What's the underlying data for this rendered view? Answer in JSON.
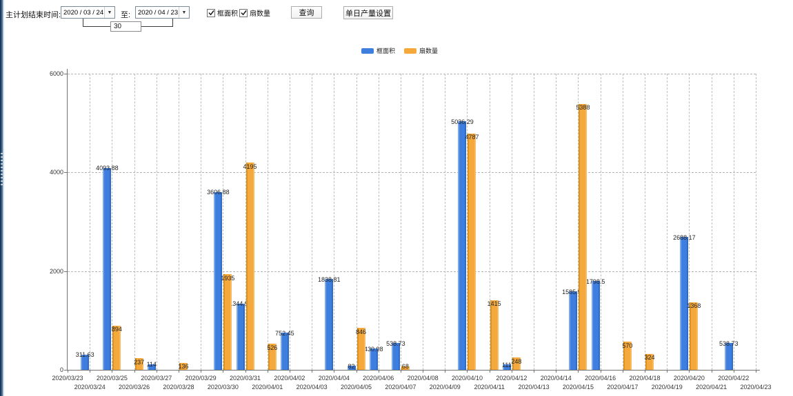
{
  "toolbar": {
    "main_plan_end_label": "主计划结束时间:",
    "date_from": "2020 / 03 / 24",
    "to_label": "至:",
    "date_to": "2020 / 04 / 23",
    "interval_days": "30",
    "frame_area_checkbox": "框面积",
    "sash_count_checkbox": "扇数量",
    "query_button": "查询",
    "daily_output_button": "单日产量设置"
  },
  "legend": {
    "items": [
      {
        "label": "框面积",
        "color": "#3d7edf"
      },
      {
        "label": "扇数量",
        "color": "#f5a93d"
      }
    ]
  },
  "chart_data": {
    "type": "bar",
    "title": "",
    "xlabel": "",
    "ylabel": "",
    "ylim": [
      0,
      6000
    ],
    "yticks": [
      0,
      2000,
      4000,
      6000
    ],
    "grid": true,
    "legend_position": "top-center",
    "categories": [
      "2020/03/23",
      "2020/03/24",
      "2020/03/25",
      "2020/03/26",
      "2020/03/27",
      "2020/03/28",
      "2020/03/29",
      "2020/03/30",
      "2020/03/31",
      "2020/04/01",
      "2020/04/02",
      "2020/04/03",
      "2020/04/04",
      "2020/04/05",
      "2020/04/06",
      "2020/04/07",
      "2020/04/08",
      "2020/04/09",
      "2020/04/10",
      "2020/04/11",
      "2020/04/12",
      "2020/04/13",
      "2020/04/14",
      "2020/04/15",
      "2020/04/16",
      "2020/04/17",
      "2020/04/18",
      "2020/04/19",
      "2020/04/20",
      "2020/04/21",
      "2020/04/22",
      "2020/04/23"
    ],
    "series": [
      {
        "name": "框面积",
        "color": "#3d7edf",
        "values": [
          null,
          311.63,
          4093.88,
          null,
          114,
          null,
          null,
          3606.88,
          1344.95,
          null,
          752.45,
          null,
          1838.81,
          82,
          430.98,
          538.73,
          null,
          null,
          5036.29,
          null,
          111,
          null,
          null,
          1585.96,
          1798.5,
          null,
          null,
          null,
          2688.17,
          null,
          538.73,
          null
        ]
      },
      {
        "name": "扇数量",
        "color": "#f5a93d",
        "values": [
          null,
          null,
          894,
          237,
          null,
          136,
          null,
          1935,
          4195,
          526,
          null,
          null,
          null,
          846,
          null,
          68,
          null,
          null,
          4787,
          1415,
          248,
          null,
          null,
          5388,
          null,
          570,
          324,
          null,
          1368,
          null,
          null,
          null
        ]
      }
    ]
  }
}
